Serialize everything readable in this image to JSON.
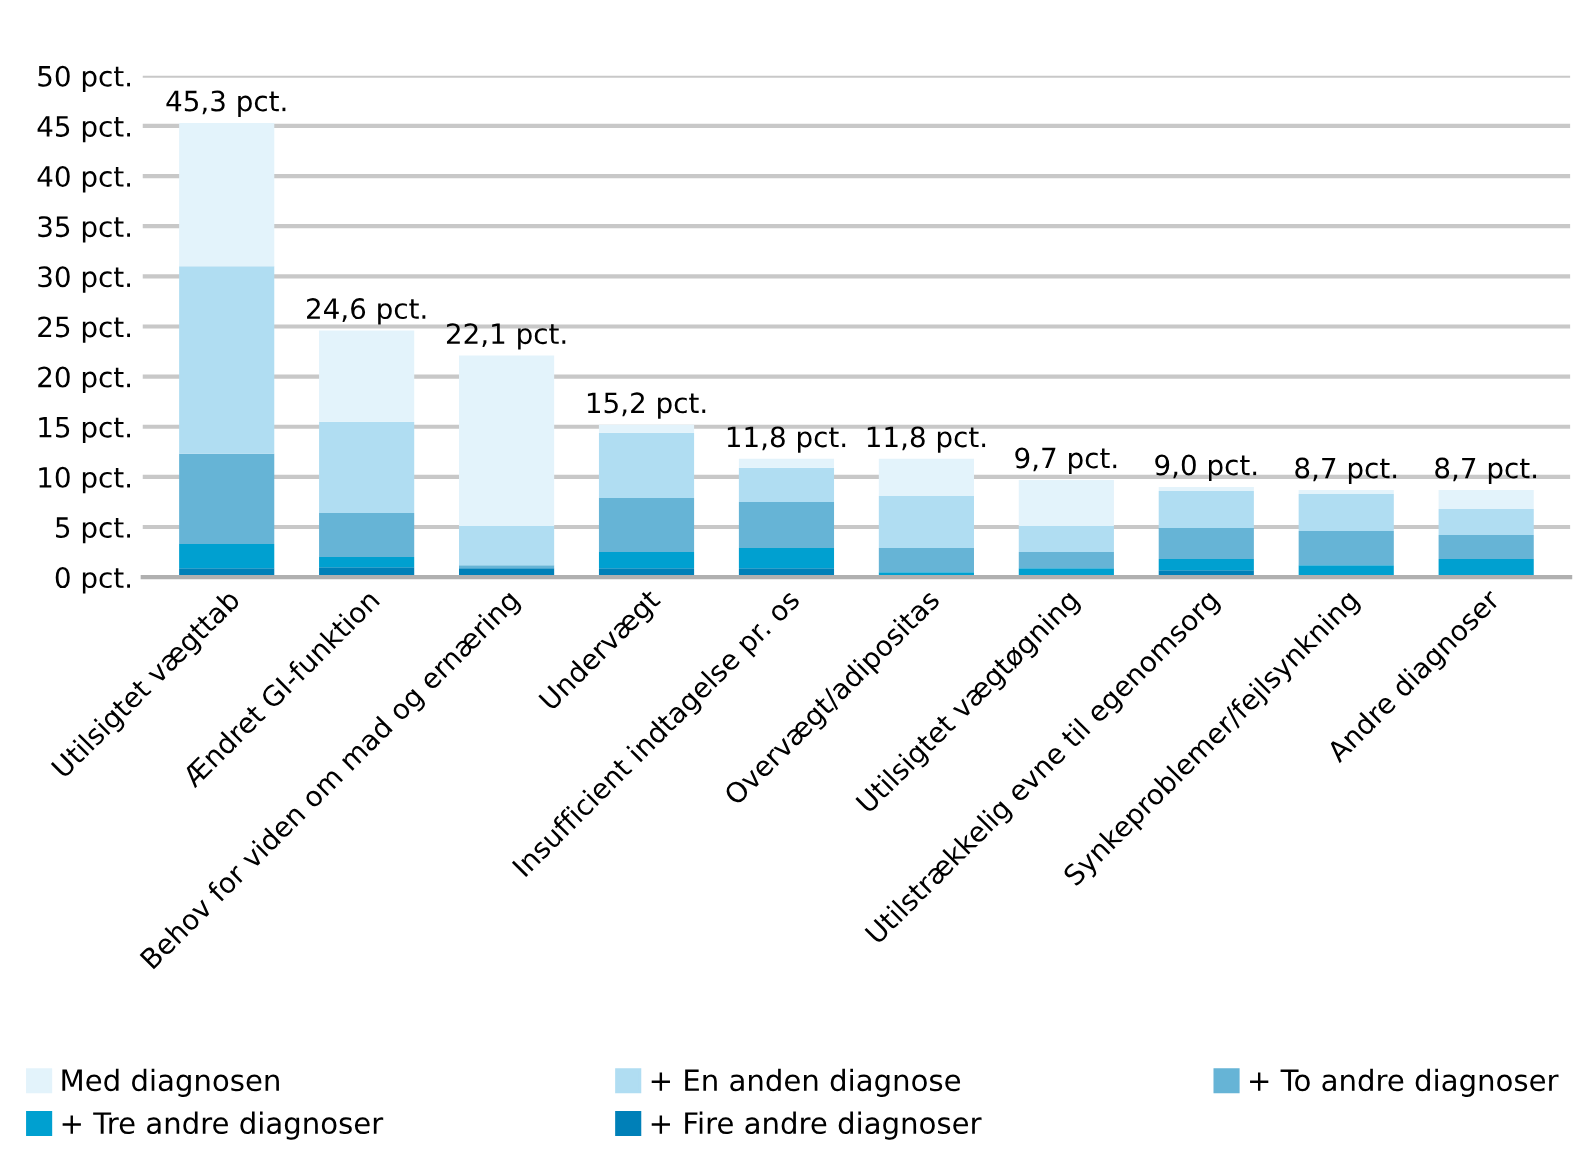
{
  "chart_data": {
    "type": "bar",
    "stacked": true,
    "categories": [
      "Utilsigtet vægttab",
      "Ændret GI-funktion",
      "Behov for viden om mad og ernæring",
      "Undervægt",
      "Insufficient indtagelse pr. os",
      "Overvægt/adipositas",
      "Utilsigtet vægtøgning",
      "Utilstrækkelig evne til egenomsorg",
      "Synkeproblemer/fejlsynkning",
      "Andre diagnoser"
    ],
    "series": [
      {
        "name": "+ Fire andre diagnoser",
        "color": "#0080b8",
        "values": [
          0.9,
          1.0,
          0.9,
          0.9,
          0.9,
          0,
          0,
          0.7,
          0,
          0
        ]
      },
      {
        "name": "+ Tre andre diagnoser",
        "color": "#00a0d0",
        "values": [
          2.4,
          1.0,
          0,
          1.6,
          2.0,
          0.5,
          0.9,
          1.1,
          1.2,
          1.8
        ]
      },
      {
        "name": "+ To andre diagnoser",
        "color": "#66b4d6",
        "values": [
          9.0,
          4.4,
          0.3,
          5.4,
          4.6,
          2.4,
          1.6,
          3.1,
          3.4,
          2.4
        ]
      },
      {
        "name": "+ En anden diagnose",
        "color": "#b0ddf2",
        "values": [
          18.7,
          9.1,
          3.9,
          6.5,
          3.4,
          5.2,
          2.6,
          3.7,
          3.7,
          2.6
        ]
      },
      {
        "name": "Med diagnosen",
        "color": "#e3f3fb",
        "values": [
          14.3,
          9.1,
          17.0,
          0.8,
          0.9,
          3.7,
          4.6,
          0.4,
          0.4,
          1.9
        ]
      }
    ],
    "totals": [
      "45,3 pct.",
      "24,6 pct.",
      "22,1 pct.",
      "15,2 pct.",
      "11,8 pct.",
      "11,8 pct.",
      "9,7 pct.",
      "9,0 pct.",
      "8,7 pct.",
      "8,7 pct."
    ],
    "ylim": [
      0,
      50
    ],
    "yticks": [
      {
        "value": 0,
        "label": "0 pct."
      },
      {
        "value": 5,
        "label": "5 pct."
      },
      {
        "value": 10,
        "label": "10 pct."
      },
      {
        "value": 15,
        "label": "15 pct."
      },
      {
        "value": 20,
        "label": "20 pct."
      },
      {
        "value": 25,
        "label": "25 pct."
      },
      {
        "value": 30,
        "label": "30 pct."
      },
      {
        "value": 35,
        "label": "35 pct."
      },
      {
        "value": 40,
        "label": "40 pct."
      },
      {
        "value": 45,
        "label": "45 pct."
      },
      {
        "value": 50,
        "label": "50 pct."
      }
    ],
    "grid": "y",
    "legend": "bottom"
  }
}
